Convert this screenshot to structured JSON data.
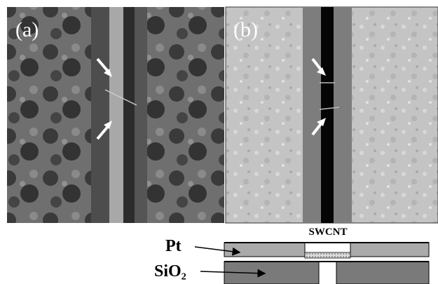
{
  "panels": [
    {
      "label": "(a)"
    },
    {
      "label": "(b)"
    }
  ],
  "schematic": {
    "top_label": "SWCNT",
    "layer_labels": [
      "Pt",
      "SiO₂"
    ]
  }
}
